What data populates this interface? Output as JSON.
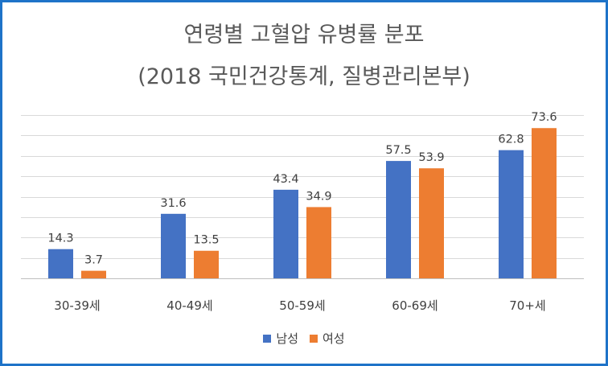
{
  "chart_data": {
    "type": "bar",
    "title": "연령별 고혈압 유병률 분포",
    "subtitle": "(2018 국민건강통계, 질병관리본부)",
    "categories": [
      "30-39세",
      "40-49세",
      "50-59세",
      "60-69세",
      "70+세"
    ],
    "series": [
      {
        "name": "남성",
        "color": "#4472c4",
        "values": [
          14.3,
          31.6,
          43.4,
          57.5,
          62.8
        ]
      },
      {
        "name": "여성",
        "color": "#ed7d31",
        "values": [
          3.7,
          13.5,
          34.9,
          53.9,
          73.6
        ]
      }
    ],
    "ylim": [
      0,
      80
    ],
    "grid": true,
    "legend": "bottom",
    "ytick_labels_visible": false
  }
}
